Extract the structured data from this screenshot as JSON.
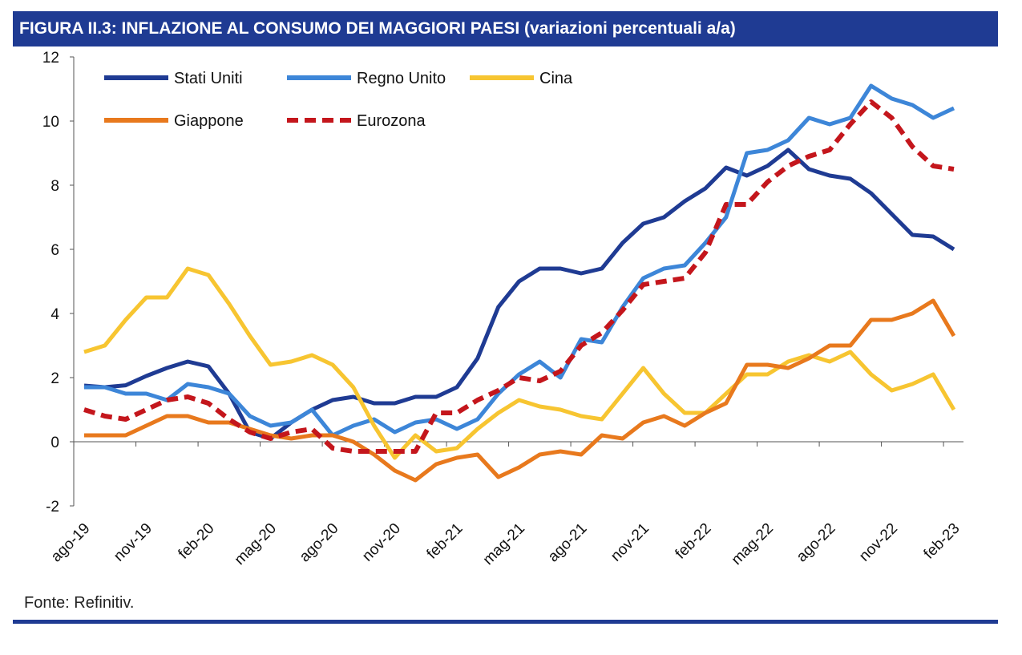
{
  "header": {
    "title": "FIGURA II.3: INFLAZIONE AL CONSUMO DEI MAGGIORI PAESI (variazioni percentuali a/a)"
  },
  "footer": {
    "source": "Fonte: Refinitiv."
  },
  "chart_data": {
    "type": "line",
    "title": "FIGURA II.3: INFLAZIONE AL CONSUMO DEI MAGGIORI PAESI (variazioni percentuali a/a)",
    "ylim": [
      -2,
      12
    ],
    "yticks": [
      -2,
      0,
      2,
      4,
      6,
      8,
      10,
      12
    ],
    "x": [
      "ago-19",
      "set-19",
      "ott-19",
      "nov-19",
      "dic-19",
      "gen-20",
      "feb-20",
      "mar-20",
      "apr-20",
      "mag-20",
      "giu-20",
      "lug-20",
      "ago-20",
      "set-20",
      "ott-20",
      "nov-20",
      "dic-20",
      "gen-21",
      "feb-21",
      "mar-21",
      "apr-21",
      "mag-21",
      "giu-21",
      "lug-21",
      "ago-21",
      "set-21",
      "ott-21",
      "nov-21",
      "dic-21",
      "gen-22",
      "feb-22",
      "mar-22",
      "apr-22",
      "mag-22",
      "giu-22",
      "lug-22",
      "ago-22",
      "set-22",
      "ott-22",
      "nov-22",
      "dic-22",
      "gen-23",
      "feb-23"
    ],
    "xtick_labels": [
      "ago-19",
      "nov-19",
      "feb-20",
      "mag-20",
      "ago-20",
      "nov-20",
      "feb-21",
      "mag-21",
      "ago-21",
      "nov-21",
      "feb-22",
      "mag-22",
      "ago-22",
      "nov-22",
      "feb-23"
    ],
    "grid": false,
    "legend_placement": "top-left",
    "series": [
      {
        "name": "Stati Uniti",
        "color": "#1f3b93",
        "dash": false,
        "values": [
          1.75,
          1.7,
          1.76,
          2.05,
          2.3,
          2.5,
          2.35,
          1.5,
          0.3,
          0.1,
          0.6,
          1.0,
          1.3,
          1.4,
          1.2,
          1.2,
          1.4,
          1.4,
          1.7,
          2.6,
          4.2,
          5.0,
          5.4,
          5.4,
          5.25,
          5.4,
          6.2,
          6.8,
          7.0,
          7.5,
          7.9,
          8.55,
          8.3,
          8.6,
          9.1,
          8.5,
          8.3,
          8.2,
          7.75,
          7.1,
          6.45,
          6.4,
          6.0
        ]
      },
      {
        "name": "Regno Unito",
        "color": "#3d86d8",
        "dash": false,
        "values": [
          1.7,
          1.7,
          1.5,
          1.5,
          1.3,
          1.8,
          1.7,
          1.5,
          0.8,
          0.5,
          0.6,
          1.0,
          0.2,
          0.5,
          0.7,
          0.3,
          0.6,
          0.7,
          0.4,
          0.7,
          1.5,
          2.1,
          2.5,
          2.0,
          3.2,
          3.1,
          4.2,
          5.1,
          5.4,
          5.5,
          6.2,
          7.0,
          9.0,
          9.1,
          9.4,
          10.1,
          9.9,
          10.1,
          11.1,
          10.7,
          10.5,
          10.1,
          10.4
        ]
      },
      {
        "name": "Cina",
        "color": "#f7c531",
        "dash": false,
        "values": [
          2.8,
          3.0,
          3.8,
          4.5,
          4.5,
          5.4,
          5.2,
          4.3,
          3.3,
          2.4,
          2.5,
          2.7,
          2.4,
          1.7,
          0.5,
          -0.5,
          0.2,
          -0.3,
          -0.2,
          0.4,
          0.9,
          1.3,
          1.1,
          1.0,
          0.8,
          0.7,
          1.5,
          2.3,
          1.5,
          0.9,
          0.9,
          1.5,
          2.1,
          2.1,
          2.5,
          2.7,
          2.5,
          2.8,
          2.1,
          1.6,
          1.8,
          2.1,
          1.0
        ]
      },
      {
        "name": "Giappone",
        "color": "#e8791d",
        "dash": false,
        "values": [
          0.2,
          0.2,
          0.2,
          0.5,
          0.8,
          0.8,
          0.6,
          0.6,
          0.4,
          0.2,
          0.1,
          0.2,
          0.2,
          0.0,
          -0.4,
          -0.9,
          -1.2,
          -0.7,
          -0.5,
          -0.4,
          -1.1,
          -0.8,
          -0.4,
          -0.3,
          -0.4,
          0.2,
          0.1,
          0.6,
          0.8,
          0.5,
          0.9,
          1.2,
          2.4,
          2.4,
          2.3,
          2.6,
          3.0,
          3.0,
          3.8,
          3.8,
          4.0,
          4.4,
          3.3
        ]
      },
      {
        "name": "Eurozona",
        "color": "#c4161c",
        "dash": true,
        "values": [
          1.0,
          0.8,
          0.7,
          1.0,
          1.3,
          1.4,
          1.2,
          0.7,
          0.3,
          0.1,
          0.3,
          0.4,
          -0.2,
          -0.3,
          -0.3,
          -0.3,
          -0.3,
          0.9,
          0.9,
          1.3,
          1.6,
          2.0,
          1.9,
          2.2,
          3.0,
          3.4,
          4.1,
          4.9,
          5.0,
          5.1,
          5.9,
          7.4,
          7.4,
          8.1,
          8.6,
          8.9,
          9.1,
          9.9,
          10.6,
          10.1,
          9.2,
          8.6,
          8.5
        ]
      }
    ]
  }
}
